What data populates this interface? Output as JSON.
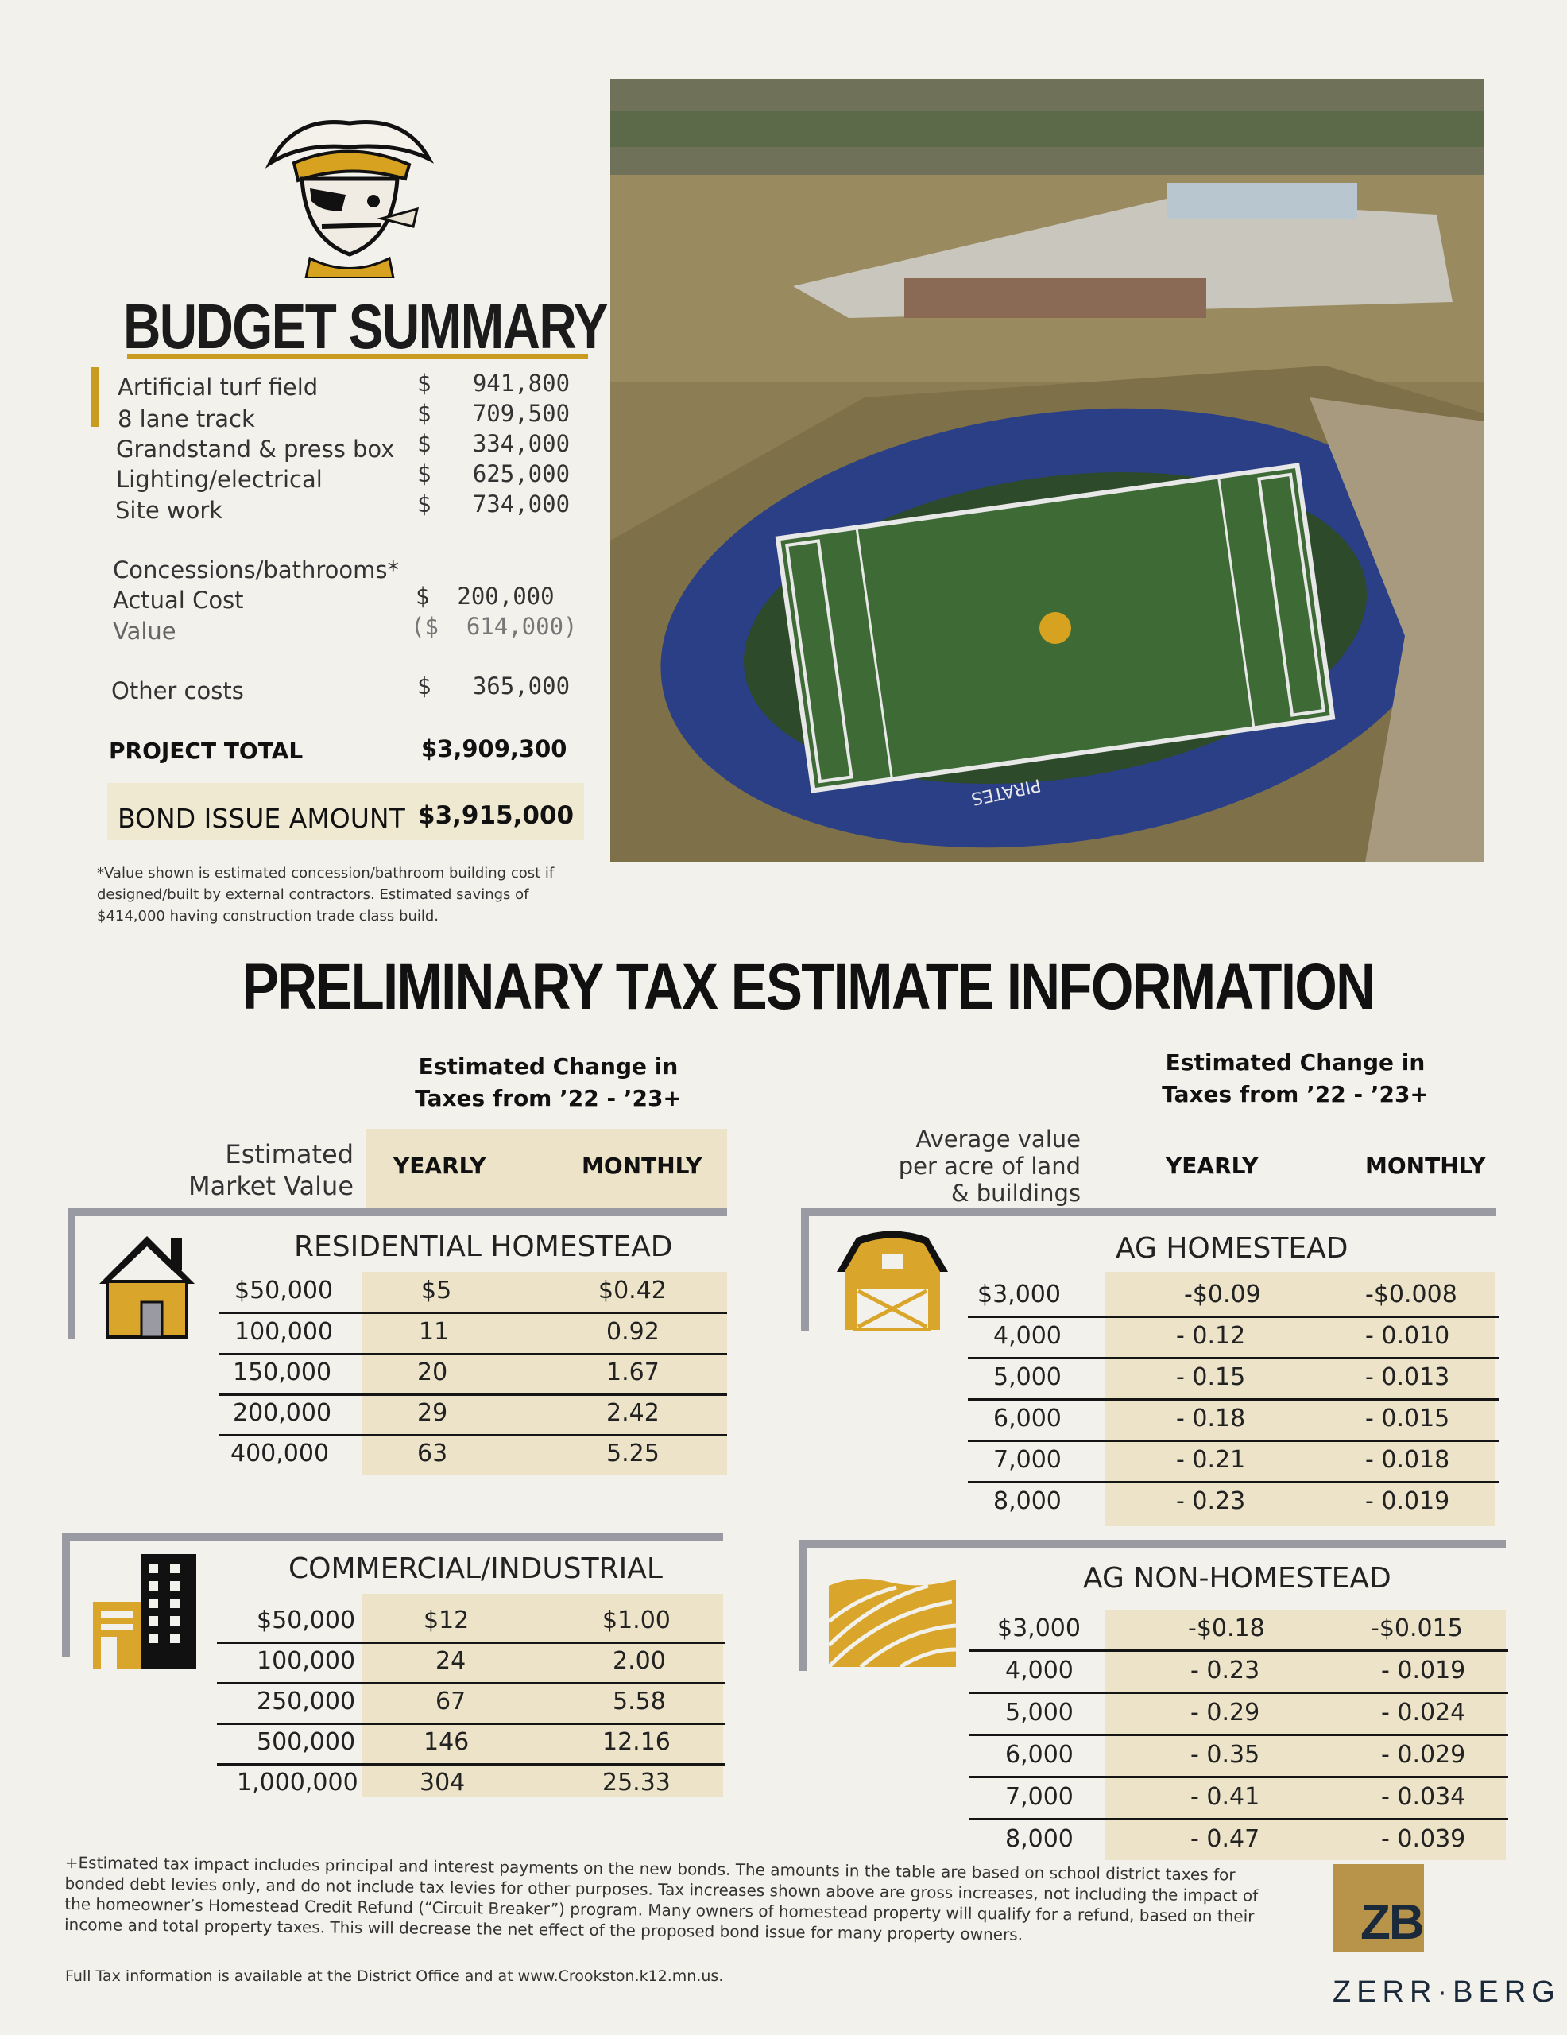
{
  "budget": {
    "title": "BUDGET SUMMARY",
    "items": [
      {
        "label": "Artificial turf field",
        "amount": "$   941,800"
      },
      {
        "label": "8 lane track",
        "amount": "$   709,500"
      },
      {
        "label": "Grandstand & press box",
        "amount": "$   334,000"
      },
      {
        "label": "Lighting/electrical",
        "amount": "$   625,000"
      },
      {
        "label": "Site work",
        "amount": "$   734,000"
      }
    ],
    "concessions_label": "Concessions/bathrooms*",
    "actual_cost_label": "Actual Cost",
    "actual_cost": "$  200,000",
    "value_label": "Value",
    "value": "($  614,000)",
    "other_label": "Other costs",
    "other": "$   365,000",
    "total_label": "PROJECT TOTAL",
    "total": "$3,909,300",
    "bond_label": "BOND ISSUE AMOUNT",
    "bond": "$3,915,000",
    "note": "*Value shown is estimated concession/bathroom building cost if designed/built by external contractors. Estimated savings of $414,000 having construction trade class build."
  },
  "photo": {
    "stadium_text": "PIRATES"
  },
  "tax": {
    "title": "PRELIMINARY TAX ESTIMATE INFORMATION",
    "change_header_line1": "Estimated Change in",
    "change_header_line2": "Taxes from ’22 - ’23+",
    "yearly": "YEARLY",
    "monthly": "MONTHLY",
    "market_value_line1": "Estimated",
    "market_value_line2": "Market Value",
    "avg_value_line1": "Average value",
    "avg_value_line2": "per acre of land",
    "avg_value_line3": "& buildings",
    "residential": {
      "title": "RESIDENTIAL HOMESTEAD",
      "rows": [
        [
          "$50,000",
          "$5",
          "$0.42"
        ],
        [
          "100,000",
          "11",
          "0.92"
        ],
        [
          "150,000",
          "20",
          "1.67"
        ],
        [
          "200,000",
          "29",
          "2.42"
        ],
        [
          "400,000",
          "63",
          "5.25"
        ]
      ]
    },
    "commercial": {
      "title": "COMMERCIAL/INDUSTRIAL",
      "rows": [
        [
          "$50,000",
          "$12",
          "$1.00"
        ],
        [
          "100,000",
          "24",
          "2.00"
        ],
        [
          "250,000",
          "67",
          "5.58"
        ],
        [
          "500,000",
          "146",
          "12.16"
        ],
        [
          "1,000,000",
          "304",
          "25.33"
        ]
      ]
    },
    "ag_homestead": {
      "title": "AG HOMESTEAD",
      "rows": [
        [
          "$3,000",
          "-$0.09",
          "-$0.008"
        ],
        [
          "4,000",
          "- 0.12",
          "- 0.010"
        ],
        [
          "5,000",
          "- 0.15",
          "- 0.013"
        ],
        [
          "6,000",
          "- 0.18",
          "- 0.015"
        ],
        [
          "7,000",
          "- 0.21",
          "- 0.018"
        ],
        [
          "8,000",
          "- 0.23",
          "- 0.019"
        ]
      ]
    },
    "ag_nonhomestead": {
      "title": "AG NON-HOMESTEAD",
      "rows": [
        [
          "$3,000",
          "-$0.18",
          "-$0.015"
        ],
        [
          "4,000",
          "- 0.23",
          "- 0.019"
        ],
        [
          "5,000",
          "- 0.29",
          "- 0.024"
        ],
        [
          "6,000",
          "- 0.35",
          "- 0.029"
        ],
        [
          "7,000",
          "- 0.41",
          "- 0.034"
        ],
        [
          "8,000",
          "- 0.47",
          "- 0.039"
        ]
      ]
    },
    "footnote": "+Estimated tax impact includes principal and interest payments on the new bonds. The amounts in the table are based on school district taxes for bonded debt levies only, and do not include tax levies for other purposes. Tax increases shown above are gross increases, not including the impact of the homeowner’s Homestead Credit Refund (“Circuit Breaker”) program. Many owners of homestead property will qualify for a refund, based on their income and total property taxes. This will decrease the net effect of the proposed bond issue for many property owners.",
    "full_info": "Full Tax information is available at the District Office and at www.Crookston.k12.mn.us."
  },
  "logo": {
    "mark": "ZB",
    "name": "ZERR·BERG"
  },
  "colors": {
    "gold": "#c99b1e",
    "frame_gray": "#9a9aa3",
    "band": "#ece3c8",
    "track_blue": "#2a3f86"
  }
}
